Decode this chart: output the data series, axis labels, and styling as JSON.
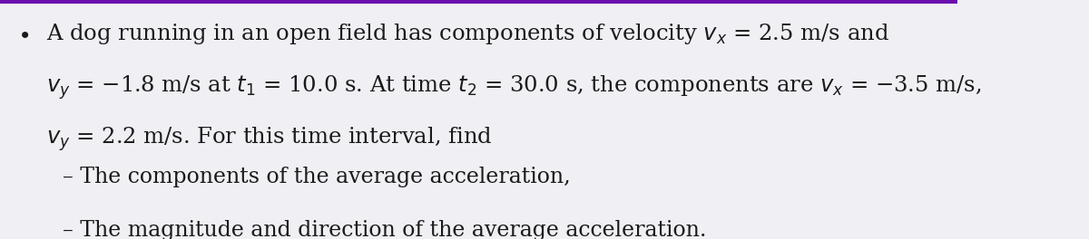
{
  "background_color": "#f0eff4",
  "top_bar_color": "#6a0dad",
  "top_bar_height": 0.018,
  "bullet_color": "#1a1a1a",
  "text_color": "#1a1a1a",
  "indent_color": "#1a1a1a",
  "line1": "A dog running in an open field has components of velocity $v_x$ = 2.5 m/s and",
  "line2": "$v_y$ = −1.8 m/s at $t_1$ = 10.0 s. At time $t_2$ = 30.0 s, the components are $v_x$ = −3.5 m/s,",
  "line3": "$v_y$ = 2.2 m/s. For this time interval, find",
  "line4": "– The components of the average acceleration,",
  "line5": "– The magnitude and direction of the average acceleration.",
  "font_size_main": 17.5,
  "font_size_sub": 17.0,
  "font_family": "serif"
}
